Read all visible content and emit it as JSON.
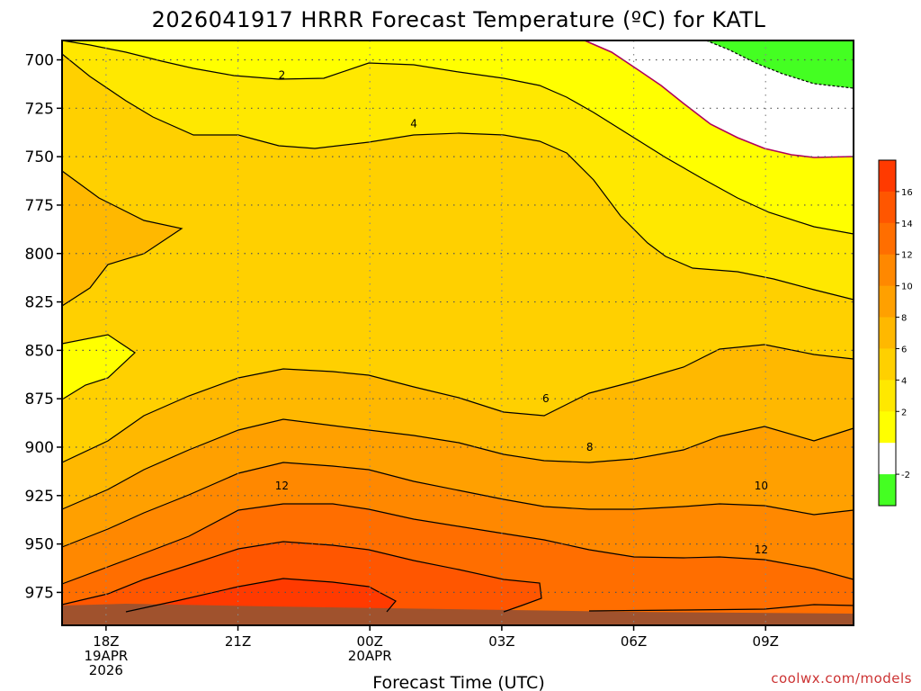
{
  "chart_data": {
    "type": "heatmap",
    "title": "2026041917 HRRR Forecast Temperature (ºC) for KATL",
    "xlabel": "Forecast Time (UTC)",
    "credit": "coolwx.com/models",
    "y_ticks": [
      "700",
      "725",
      "750",
      "775",
      "800",
      "825",
      "850",
      "875",
      "900",
      "925",
      "950",
      "975"
    ],
    "x_ticks": [
      {
        "hour": 0,
        "label": "18Z",
        "sub": [
          "19APR",
          "2026"
        ]
      },
      {
        "hour": 3,
        "label": "21Z",
        "sub": []
      },
      {
        "hour": 6,
        "label": "00Z",
        "sub": [
          "20APR"
        ]
      },
      {
        "hour": 9,
        "label": "03Z",
        "sub": []
      },
      {
        "hour": 12,
        "label": "06Z",
        "sub": []
      },
      {
        "hour": 15,
        "label": "09Z",
        "sub": []
      }
    ],
    "x_range_hours": [
      -1,
      17
    ],
    "y_range_hpa": [
      690,
      992
    ],
    "grid": true,
    "contour_labels": [
      {
        "text": "2",
        "hour": 4,
        "hpa": 708
      },
      {
        "text": "4",
        "hour": 7,
        "hpa": 733
      },
      {
        "text": "6",
        "hour": 10,
        "hpa": 875
      },
      {
        "text": "8",
        "hour": 11,
        "hpa": 900
      },
      {
        "text": "10",
        "hour": 14.9,
        "hpa": 920
      },
      {
        "text": "12",
        "hour": 4,
        "hpa": 920
      },
      {
        "text": "12",
        "hour": 14.9,
        "hpa": 953
      }
    ],
    "colorbar": {
      "labels": [
        "16",
        "14",
        "12",
        "10",
        "8",
        "6",
        "4",
        "2",
        "-2"
      ],
      "colors": [
        "#ff3a00",
        "#ff5600",
        "#ff6e00",
        "#ff8800",
        "#ffa000",
        "#ffb800",
        "#ffd000",
        "#ffe800",
        "#ffff00",
        "#ffffff",
        "#44ff22"
      ]
    },
    "colors": {
      "above_16": "#ff3a00",
      "c14_16": "#ff5600",
      "c12_14": "#ff6e00",
      "c10_12": "#ff8800",
      "c8_10": "#ffa000",
      "c6_8": "#ffb800",
      "c4_6": "#ffd000",
      "c2_4": "#ffe800",
      "c0_2": "#ffff00",
      "below_0": "#ffffff",
      "below_m2": "#44ff22",
      "freezing_line": "#b0005a",
      "ground": "#a0522d"
    }
  }
}
